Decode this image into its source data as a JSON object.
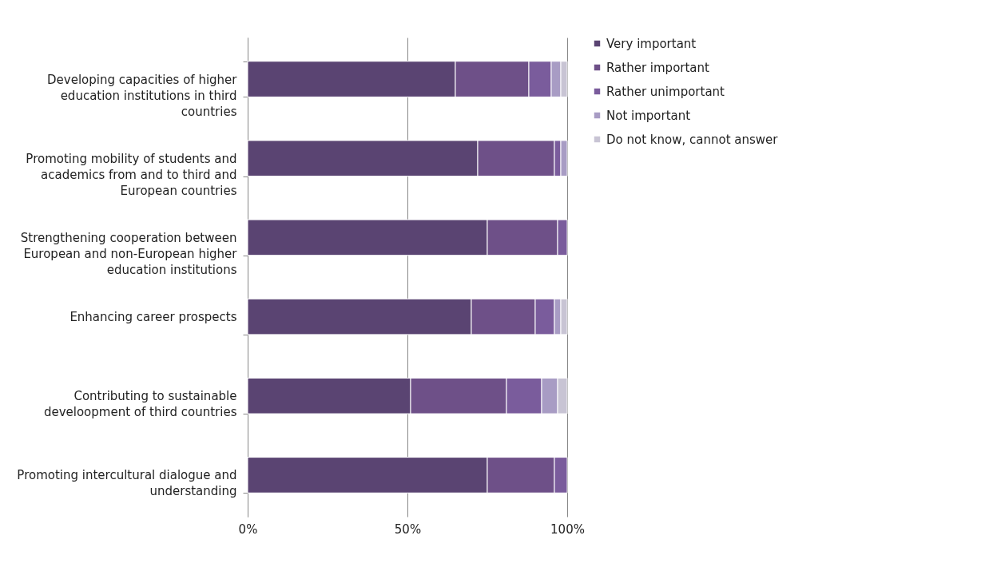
{
  "chart_data": {
    "type": "bar",
    "orientation": "horizontal",
    "stacked": true,
    "categories": [
      "Developing capacities of higher education institutions in third countries",
      "Promoting mobility of students and academics from and to third and European countries",
      "Strengthening cooperation between European and non-European higher education institutions",
      "Enhancing career prospects",
      "Contributing to sustainable develoopment of third countries",
      "Promoting intercultural dialogue and understanding"
    ],
    "series": [
      {
        "name": "Very important",
        "color": "#5a4472",
        "values": [
          65,
          72,
          75,
          70,
          51,
          75
        ]
      },
      {
        "name": "Rather important",
        "color": "#6e5088",
        "values": [
          23,
          24,
          22,
          20,
          30,
          21
        ]
      },
      {
        "name": "Rather unimportant",
        "color": "#7a5c9c",
        "values": [
          7,
          2,
          3,
          6,
          11,
          4
        ]
      },
      {
        "name": "Not important",
        "color": "#a89cc4",
        "values": [
          3,
          2,
          0,
          2,
          5,
          0
        ]
      },
      {
        "name": "Do not know, cannot answer",
        "color": "#c8c4d4",
        "values": [
          2,
          0,
          0,
          2,
          3,
          0
        ]
      }
    ],
    "xlim": [
      0,
      100
    ],
    "xticks": [
      {
        "value": 0,
        "label": "0%"
      },
      {
        "value": 50,
        "label": "50%"
      },
      {
        "value": 100,
        "label": "100%"
      }
    ],
    "grid": "x",
    "legend": "right"
  }
}
